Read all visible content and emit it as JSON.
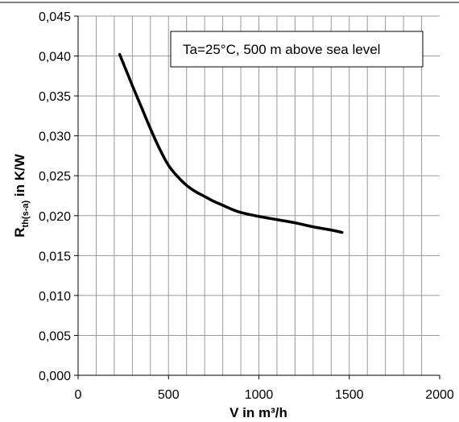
{
  "chart_data": {
    "type": "line",
    "xlabel": "V in m³/h",
    "ylabel": "Rth(s-a) in K/W",
    "ylabel_main": "R",
    "ylabel_sub": "th(s-a)",
    "ylabel_rest": " in K/W",
    "annotation": "Ta=25°C, 500 m above sea level",
    "xlim": [
      0,
      2000
    ],
    "ylim": [
      0,
      0.045
    ],
    "x_ticks": [
      0,
      500,
      1000,
      1500,
      2000
    ],
    "x_tick_labels": [
      "0",
      "500",
      "1000",
      "1500",
      "2000"
    ],
    "y_ticks": [
      0,
      0.005,
      0.01,
      0.015,
      0.02,
      0.025,
      0.03,
      0.035,
      0.04,
      0.045
    ],
    "y_tick_labels": [
      "0,000",
      "0,005",
      "0,010",
      "0,015",
      "0,020",
      "0,025",
      "0,030",
      "0,035",
      "0,040",
      "0,045"
    ],
    "grid": true,
    "series": [
      {
        "x": [
          230,
          300,
          350,
          400,
          450,
          500,
          550,
          600,
          650,
          700,
          750,
          800,
          850,
          900,
          1000,
          1100,
          1200,
          1300,
          1400,
          1460
        ],
        "y": [
          0.0402,
          0.0363,
          0.0336,
          0.0309,
          0.0284,
          0.0263,
          0.0249,
          0.0238,
          0.023,
          0.0224,
          0.0218,
          0.0213,
          0.0208,
          0.0204,
          0.0199,
          0.0195,
          0.0191,
          0.0186,
          0.0182,
          0.0179
        ]
      }
    ]
  },
  "style": {
    "line_color": "#000000",
    "grid_color": "#9a9a9a",
    "top_rule_color": "#000000"
  }
}
